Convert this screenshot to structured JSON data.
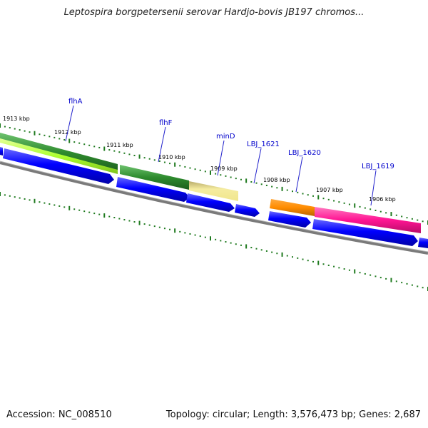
{
  "title": "Leptospira borgpetersenii serovar Hardjo-bovis JB197 chromos...",
  "footer": {
    "accession": "Accession: NC_008510",
    "topology": "Topology: circular; Length: 3,576,473 bp; Genes: 2,687"
  },
  "colors": {
    "backbone": "#808080",
    "tick": "#1f7a1f",
    "cds": "#0000ff",
    "gene_label": "#0000cc",
    "flhA": "#2e8b2e",
    "unnamed_light": "#adff2f",
    "flhF": "#2e8b2e",
    "minD": "#f0e68c",
    "LBJ_1620": "#ff8c00",
    "LBJ_1619": "#ff1493"
  },
  "scale_labels": [
    "1913 kbp",
    "1912 kbp",
    "1911 kbp",
    "1910 kbp",
    "1909 kbp",
    "1908 kbp",
    "1907 kbp",
    "1906 kbp"
  ],
  "gene_labels": [
    "flhA",
    "flhF",
    "minD",
    "LBJ_1621",
    "LBJ_1620",
    "LBJ_1619"
  ]
}
